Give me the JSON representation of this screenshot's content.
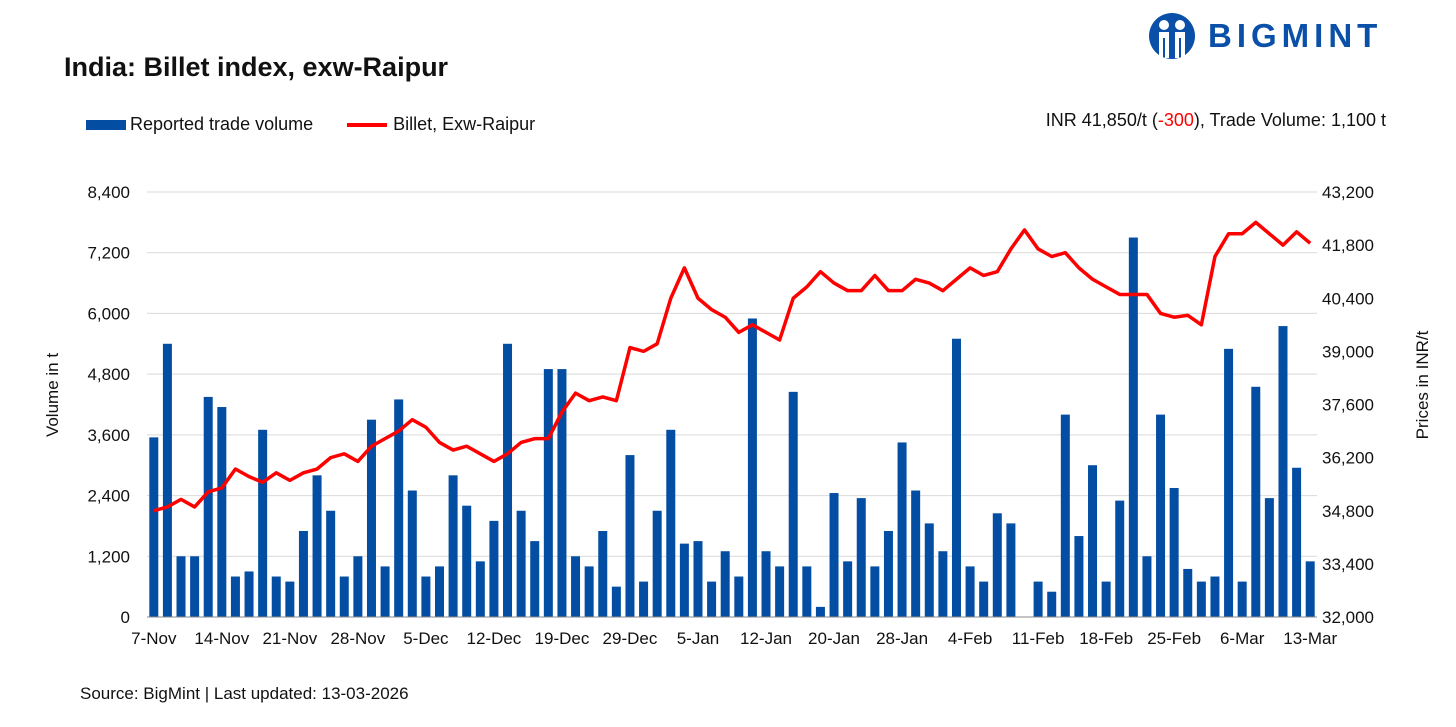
{
  "title": "India: Billet index, exw-Raipur",
  "logo": {
    "text": "BIGMINT",
    "color": "#0a4fa8"
  },
  "summary": {
    "prefix": "INR 41,850/t (",
    "change": "-300",
    "suffix": "), Trade Volume: 1,100 t"
  },
  "source": "Source: BigMint | Last updated: 13-03-2026",
  "chart_data": {
    "type": "bar+line",
    "title": "India: Billet index, exw-Raipur",
    "ylabel": "Volume in t",
    "y2label": "Prices in INR/t",
    "ylim": [
      0,
      8400
    ],
    "y2lim": [
      32000,
      43200
    ],
    "yticks": [
      "0",
      "1,200",
      "2,400",
      "3,600",
      "4,800",
      "6,000",
      "7,200",
      "8,400"
    ],
    "y2ticks": [
      "32,000",
      "33,400",
      "34,800",
      "36,200",
      "37,600",
      "39,000",
      "40,400",
      "41,800",
      "43,200"
    ],
    "x_tick_labels": [
      "7-Nov",
      "14-Nov",
      "21-Nov",
      "28-Nov",
      "5-Dec",
      "12-Dec",
      "19-Dec",
      "29-Dec",
      "5-Jan",
      "12-Jan",
      "20-Jan",
      "28-Jan",
      "4-Feb",
      "11-Feb",
      "18-Feb",
      "25-Feb",
      "6-Mar",
      "13-Mar"
    ],
    "grid": true,
    "legend": "top-left",
    "series": [
      {
        "name": "Reported trade volume",
        "type": "bar",
        "axis": "left",
        "color": "#034ea2",
        "values": [
          3550,
          5400,
          1200,
          1200,
          4350,
          4150,
          800,
          900,
          3700,
          800,
          700,
          1700,
          2800,
          2100,
          800,
          1200,
          3900,
          1000,
          4300,
          2500,
          800,
          1000,
          2800,
          2200,
          1100,
          1900,
          5400,
          2100,
          1500,
          4900,
          4900,
          1200,
          1000,
          1700,
          600,
          3200,
          700,
          2100,
          3700,
          1450,
          1500,
          700,
          1300,
          800,
          5900,
          1300,
          1000,
          4450,
          1000,
          200,
          2450,
          1100,
          2350,
          1000,
          1700,
          3450,
          2500,
          1850,
          1300,
          5500,
          1000,
          700,
          2050,
          1850,
          0,
          700,
          500,
          4000,
          1600,
          3000,
          700,
          2300,
          7500,
          1200,
          4000,
          2550,
          950,
          700,
          800,
          5300,
          700,
          4550,
          2350,
          5750,
          2950,
          1100
        ]
      },
      {
        "name": "Billet, Exw-Raipur",
        "type": "line",
        "axis": "right",
        "color": "#ff0000",
        "values": [
          34800,
          34900,
          35100,
          34900,
          35300,
          35400,
          35900,
          35700,
          35550,
          35800,
          35600,
          35800,
          35900,
          36200,
          36300,
          36100,
          36500,
          36700,
          36900,
          37200,
          37000,
          36600,
          36400,
          36500,
          36300,
          36100,
          36300,
          36600,
          36700,
          36700,
          37400,
          37900,
          37700,
          37800,
          37700,
          39100,
          39000,
          39200,
          40400,
          41200,
          40400,
          40100,
          39900,
          39500,
          39700,
          39500,
          39300,
          40400,
          40700,
          41100,
          40800,
          40600,
          40600,
          41000,
          40600,
          40600,
          40900,
          40800,
          40600,
          40900,
          41200,
          41000,
          41100,
          41700,
          42200,
          41700,
          41500,
          41600,
          41200,
          40900,
          40700,
          40500,
          40500,
          40500,
          40000,
          39900,
          39950,
          39700,
          41500,
          42100,
          42100,
          42400,
          42100,
          41800,
          42150,
          41850
        ]
      }
    ]
  }
}
